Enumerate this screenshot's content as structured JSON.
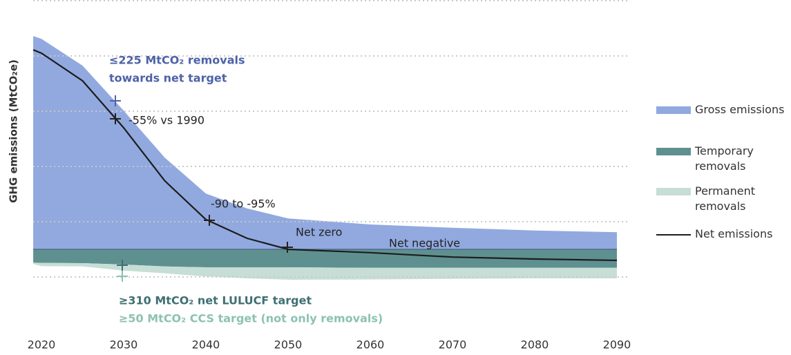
{
  "chart_data": {
    "type": "area",
    "y_label": "GHG emissions (MtCO₂e)",
    "x": [
      2019,
      2020,
      2025,
      2030,
      2035,
      2040,
      2045,
      2050,
      2060,
      2070,
      2080,
      2090
    ],
    "xlim": [
      2019,
      2090
    ],
    "xticks": [
      2020,
      2030,
      2040,
      2050,
      2060,
      2070,
      2080,
      2090
    ],
    "ylim": [
      -700,
      4500
    ],
    "yticks": [
      -500,
      500,
      1500,
      2500,
      3500,
      4500
    ],
    "grid": true,
    "series": [
      {
        "name": "Gross emissions",
        "color": "#91a9df",
        "kind": "area",
        "values": [
          3860,
          3810,
          3325,
          2510,
          1660,
          1010,
          740,
          560,
          450,
          390,
          340,
          310
        ]
      },
      {
        "name": "Temporary removals",
        "color": "#5f9090",
        "kind": "area",
        "values": [
          -240,
          -245,
          -250,
          -275,
          -310,
          -325,
          -325,
          -325,
          -335,
          -335,
          -335,
          -335
        ]
      },
      {
        "name": "Permanent removals",
        "color": "#c6ded6",
        "kind": "area",
        "values": [
          -25,
          -60,
          -60,
          -110,
          -125,
          -165,
          -200,
          -225,
          -210,
          -200,
          -190,
          -190
        ]
      },
      {
        "name": "Net emissions",
        "color": "#1c1c1c",
        "kind": "line",
        "values": [
          3610,
          3550,
          3050,
          2200,
          1240,
          540,
          200,
          0,
          -60,
          -140,
          -175,
          -200
        ]
      }
    ],
    "annotations": [
      {
        "lines": [
          "≤225 MtCO₂ removals",
          "towards net target"
        ],
        "color": "#4d62a8"
      },
      {
        "lines": [
          "-55% vs 1990"
        ],
        "color": "#222"
      },
      {
        "lines": [
          "-90 to -95%"
        ],
        "color": "#222"
      },
      {
        "lines": [
          "Net zero"
        ],
        "color": "#222"
      },
      {
        "lines": [
          "Net negative"
        ],
        "color": "#222"
      },
      {
        "lines": [
          "≥310 MtCO₂ net LULUCF target"
        ],
        "color": "#3f6f73"
      },
      {
        "lines": [
          "≥50 MtCO₂ CCS target (not only removals)"
        ],
        "color": "#8cc2b2"
      }
    ]
  }
}
